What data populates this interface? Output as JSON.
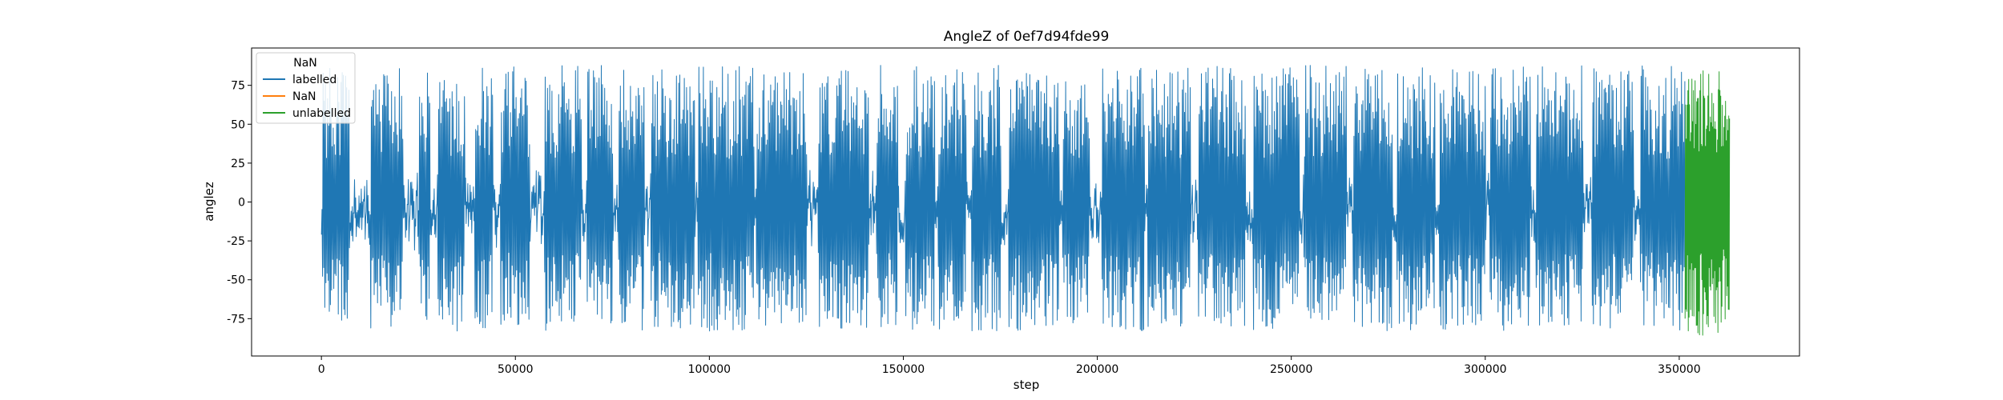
{
  "chart_data": {
    "type": "line",
    "title": "AngleZ of 0ef7d94fde99",
    "xlabel": "step",
    "ylabel": "anglez",
    "xlim": [
      -18000,
      381000
    ],
    "ylim": [
      -99,
      99
    ],
    "xticks": [
      0,
      50000,
      100000,
      150000,
      200000,
      250000,
      300000,
      350000
    ],
    "yticks": [
      -75,
      -50,
      -25,
      0,
      25,
      50,
      75
    ],
    "grid": false,
    "legend": {
      "placement": "upper-left",
      "title": "NaN",
      "entries": [
        {
          "label": "labelled",
          "color": "#1f77b4"
        },
        {
          "label": "NaN",
          "color": "#ff7f0e"
        },
        {
          "label": "unlabelled",
          "color": "#2ca02c"
        }
      ]
    },
    "series": [
      {
        "name": "labelled",
        "color": "#1f77b4",
        "x_range": [
          0,
          351500
        ],
        "approx_min": -88,
        "approx_max": 88,
        "approx_mean": -5,
        "active_segments": [
          [
            0,
            7000
          ],
          [
            12500,
            21000
          ],
          [
            25000,
            28000
          ],
          [
            30000,
            37000
          ],
          [
            39500,
            44000
          ],
          [
            46000,
            53500
          ],
          [
            57500,
            67000
          ],
          [
            68500,
            75000
          ],
          [
            76500,
            83000
          ],
          [
            85000,
            96000
          ],
          [
            97000,
            111500
          ],
          [
            112000,
            125000
          ],
          [
            128000,
            141000
          ],
          [
            143000,
            148500
          ],
          [
            150500,
            158000
          ],
          [
            159000,
            166000
          ],
          [
            167500,
            175000
          ],
          [
            177000,
            190000
          ],
          [
            191000,
            198000
          ],
          [
            201000,
            212000
          ],
          [
            213000,
            224000
          ],
          [
            226000,
            238000
          ],
          [
            240000,
            252000
          ],
          [
            253000,
            264000
          ],
          [
            266000,
            276000
          ],
          [
            277000,
            287000
          ],
          [
            288000,
            300000
          ],
          [
            301000,
            311500
          ],
          [
            313000,
            325000
          ],
          [
            327500,
            338000
          ],
          [
            340000,
            351500
          ]
        ]
      },
      {
        "name": "NaN",
        "color": "#ff7f0e",
        "x_range": [],
        "approx_min": null,
        "approx_max": null
      },
      {
        "name": "unlabelled",
        "color": "#2ca02c",
        "x_range": [
          351500,
          363000
        ],
        "approx_min": -86,
        "approx_max": 87,
        "approx_mean": 0
      }
    ]
  }
}
